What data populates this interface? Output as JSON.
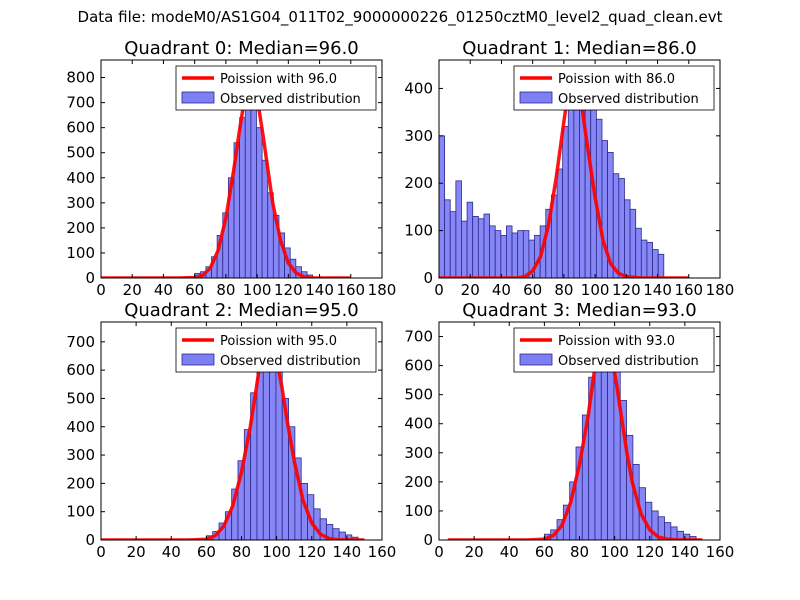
{
  "suptitle": "Data file: modeM0/AS1G04_011T02_9000000226_01250cztM0_level2_quad_clean.evt",
  "colors": {
    "hist_fill": "#7f7ff5",
    "hist_edge": "#2b2b8a",
    "poisson_line": "#ff0000",
    "axes": "#000000"
  },
  "chart_data": [
    {
      "type": "bar",
      "title": "Quadrant 0: Median=96.0",
      "xlim": [
        0,
        180
      ],
      "ylim": [
        0,
        870
      ],
      "xticks": [
        "0",
        "20",
        "40",
        "60",
        "80",
        "100",
        "120",
        "140",
        "160",
        "180"
      ],
      "xtick_values": [
        0,
        20,
        40,
        60,
        80,
        100,
        120,
        140,
        160,
        180
      ],
      "yticks": [
        "0",
        "100",
        "200",
        "300",
        "400",
        "500",
        "600",
        "700",
        "800"
      ],
      "ytick_values": [
        0,
        100,
        200,
        300,
        400,
        500,
        600,
        700,
        800
      ],
      "legend": {
        "line_label": "Poission with 96.0",
        "hist_label": "Observed distribution",
        "placement": "upper-right"
      },
      "series": [
        {
          "name": "Observed distribution",
          "kind": "histogram",
          "bin_edges": [
            60,
            63.6,
            67.2,
            70.8,
            74.4,
            78,
            81.6,
            85.2,
            88.8,
            92.4,
            96,
            99.6,
            103.2,
            106.8,
            110.4,
            114,
            117.6,
            121.2,
            124.8,
            128.4,
            132,
            135.6
          ],
          "values": [
            18,
            25,
            45,
            85,
            170,
            260,
            400,
            540,
            640,
            720,
            700,
            600,
            470,
            340,
            250,
            180,
            120,
            75,
            45,
            25,
            12
          ]
        },
        {
          "name": "Poission with 96.0",
          "kind": "line",
          "x": [
            0,
            50,
            60,
            65,
            70,
            75,
            80,
            85,
            88,
            91,
            94,
            96,
            98,
            101,
            104,
            107,
            110,
            115,
            120,
            125,
            130,
            135,
            160
          ],
          "y": [
            0,
            0,
            2,
            10,
            40,
            110,
            240,
            430,
            560,
            680,
            760,
            780,
            760,
            680,
            560,
            430,
            300,
            150,
            60,
            20,
            5,
            0,
            0
          ]
        }
      ]
    },
    {
      "type": "bar",
      "title": "Quadrant 1: Median=86.0",
      "xlim": [
        0,
        180
      ],
      "ylim": [
        0,
        460
      ],
      "xticks": [
        "0",
        "20",
        "40",
        "60",
        "80",
        "100",
        "120",
        "140",
        "160",
        "180"
      ],
      "xtick_values": [
        0,
        20,
        40,
        60,
        80,
        100,
        120,
        140,
        160,
        180
      ],
      "yticks": [
        "0",
        "100",
        "200",
        "300",
        "400"
      ],
      "ytick_values": [
        0,
        100,
        200,
        300,
        400
      ],
      "legend": {
        "line_label": "Poission with 86.0",
        "hist_label": "Observed distribution",
        "placement": "upper-right"
      },
      "series": [
        {
          "name": "Observed distribution",
          "kind": "histogram",
          "bin_edges": [
            0,
            3.6,
            7.2,
            10.8,
            14.4,
            18,
            21.6,
            25.2,
            28.8,
            32.4,
            36,
            39.6,
            43.2,
            46.8,
            50.4,
            54,
            57.6,
            61.2,
            64.8,
            68.4,
            72,
            75.6,
            79.2,
            82.8,
            86.4,
            90,
            93.6,
            97.2,
            100.8,
            104.4,
            108,
            111.6,
            115.2,
            118.8,
            122.4,
            126,
            129.6,
            133.2,
            136.8,
            140.4,
            144
          ],
          "values": [
            300,
            165,
            140,
            205,
            120,
            160,
            130,
            125,
            135,
            110,
            100,
            90,
            110,
            95,
            100,
            100,
            80,
            90,
            110,
            145,
            175,
            230,
            320,
            390,
            430,
            380,
            445,
            420,
            335,
            290,
            265,
            220,
            210,
            165,
            145,
            105,
            80,
            75,
            60,
            50
          ]
        },
        {
          "name": "Poission with 86.0",
          "kind": "line",
          "x": [
            0,
            50,
            55,
            60,
            65,
            70,
            75,
            80,
            83,
            86,
            89,
            92,
            95,
            100,
            105,
            110,
            115,
            120,
            130,
            160
          ],
          "y": [
            0,
            0,
            3,
            15,
            45,
            110,
            210,
            330,
            400,
            425,
            400,
            350,
            280,
            170,
            80,
            30,
            10,
            3,
            0,
            0
          ]
        }
      ]
    },
    {
      "type": "bar",
      "title": "Quadrant 2: Median=95.0",
      "xlim": [
        0,
        160
      ],
      "ylim": [
        0,
        770
      ],
      "xticks": [
        "0",
        "20",
        "40",
        "60",
        "80",
        "100",
        "120",
        "140",
        "160"
      ],
      "xtick_values": [
        0,
        20,
        40,
        60,
        80,
        100,
        120,
        140,
        160
      ],
      "yticks": [
        "0",
        "100",
        "200",
        "300",
        "400",
        "500",
        "600",
        "700"
      ],
      "ytick_values": [
        0,
        100,
        200,
        300,
        400,
        500,
        600,
        700
      ],
      "legend": {
        "line_label": "Poission with 95.0",
        "hist_label": "Observed distribution",
        "placement": "upper-right"
      },
      "series": [
        {
          "name": "Observed distribution",
          "kind": "histogram",
          "bin_edges": [
            60,
            63.6,
            67.2,
            70.8,
            74.4,
            78,
            81.6,
            85.2,
            88.8,
            92.4,
            96,
            99.6,
            103.2,
            106.8,
            110.4,
            114,
            117.6,
            121.2,
            124.8,
            128.4,
            132,
            135.6,
            139.2,
            142.8,
            146.4
          ],
          "values": [
            15,
            30,
            60,
            100,
            180,
            280,
            390,
            520,
            640,
            720,
            700,
            620,
            500,
            400,
            290,
            200,
            160,
            110,
            75,
            55,
            40,
            28,
            18,
            10
          ]
        },
        {
          "name": "Poission with 95.0",
          "kind": "line",
          "x": [
            0,
            50,
            60,
            65,
            70,
            75,
            80,
            85,
            88,
            91,
            93,
            95,
            97,
            100,
            103,
            106,
            110,
            115,
            120,
            125,
            130,
            135,
            150
          ],
          "y": [
            0,
            0,
            3,
            15,
            50,
            120,
            240,
            400,
            520,
            640,
            700,
            720,
            700,
            640,
            540,
            420,
            280,
            140,
            60,
            20,
            5,
            1,
            0
          ]
        }
      ]
    },
    {
      "type": "bar",
      "title": "Quadrant 3: Median=93.0",
      "xlim": [
        0,
        160
      ],
      "ylim": [
        0,
        750
      ],
      "xticks": [
        "0",
        "20",
        "40",
        "60",
        "80",
        "100",
        "120",
        "140",
        "160"
      ],
      "xtick_values": [
        0,
        20,
        40,
        60,
        80,
        100,
        120,
        140,
        160
      ],
      "yticks": [
        "0",
        "100",
        "200",
        "300",
        "400",
        "500",
        "600",
        "700"
      ],
      "ytick_values": [
        0,
        100,
        200,
        300,
        400,
        500,
        600,
        700
      ],
      "legend": {
        "line_label": "Poission with 93.0",
        "hist_label": "Observed distribution",
        "placement": "upper-right"
      },
      "series": [
        {
          "name": "Observed distribution",
          "kind": "histogram",
          "bin_edges": [
            60,
            63.6,
            67.2,
            70.8,
            74.4,
            78,
            81.6,
            85.2,
            88.8,
            92.4,
            96,
            99.6,
            103.2,
            106.8,
            110.4,
            114,
            117.6,
            121.2,
            124.8,
            128.4,
            132,
            135.6,
            139.2,
            142.8,
            146.4
          ],
          "values": [
            20,
            35,
            70,
            120,
            200,
            320,
            430,
            560,
            660,
            720,
            680,
            590,
            480,
            360,
            260,
            180,
            130,
            100,
            80,
            60,
            45,
            30,
            20,
            12
          ]
        },
        {
          "name": "Poission with 93.0",
          "kind": "line",
          "x": [
            5,
            50,
            60,
            65,
            70,
            75,
            80,
            85,
            88,
            91,
            93,
            95,
            98,
            101,
            104,
            107,
            110,
            115,
            120,
            125,
            130,
            135,
            150
          ],
          "y": [
            0,
            0,
            3,
            15,
            50,
            130,
            260,
            430,
            560,
            680,
            720,
            700,
            640,
            540,
            420,
            300,
            200,
            90,
            35,
            10,
            3,
            1,
            0
          ]
        }
      ]
    }
  ]
}
